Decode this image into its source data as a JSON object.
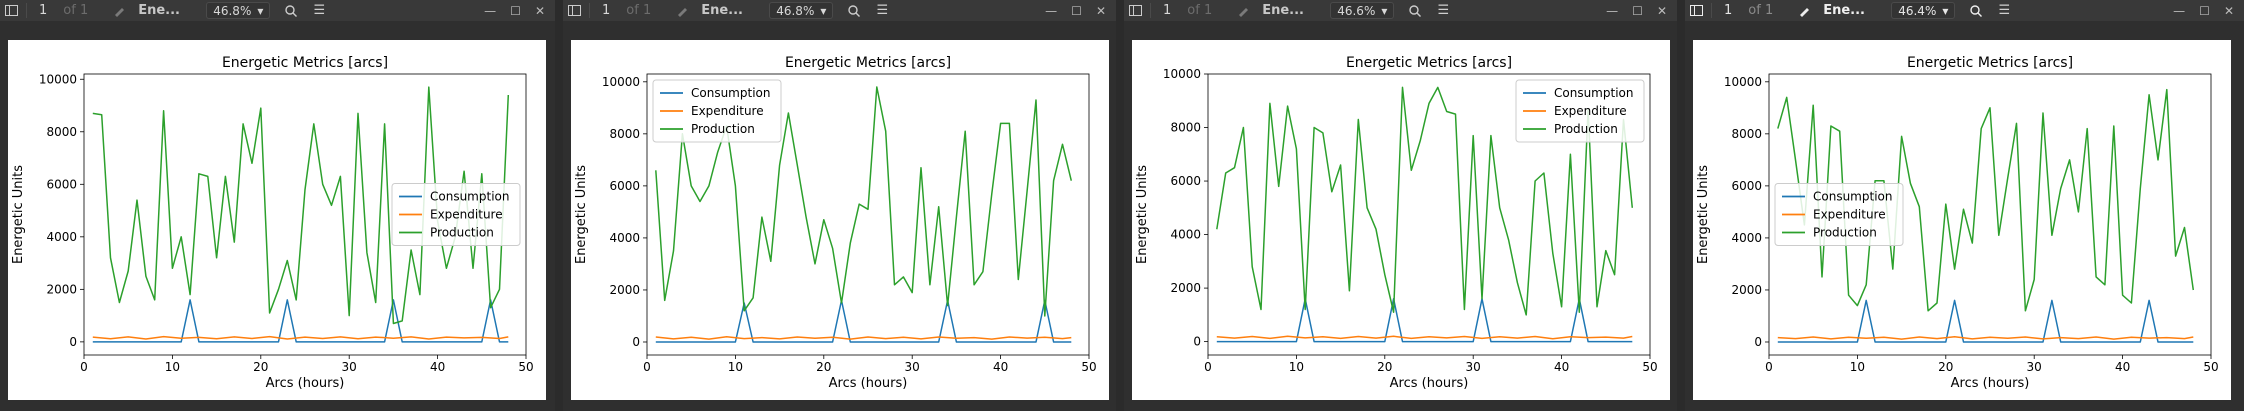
{
  "windows": [
    {
      "page": "1",
      "of": "of 1",
      "title": "Ene...",
      "zoom": "46.8%",
      "chart_data": {
        "type": "line",
        "title": "Energetic Metrics [arcs]",
        "xlabel": "Arcs (hours)",
        "ylabel": "Energetic Units",
        "xlim": [
          0,
          50
        ],
        "ylim": [
          -500,
          10200
        ],
        "xticks": [
          "0",
          "10",
          "20",
          "30",
          "40",
          "50"
        ],
        "yticks": [
          "0",
          "2000",
          "4000",
          "6000",
          "8000",
          "10000"
        ],
        "legend_position": "center-right",
        "series": [
          {
            "name": "Consumption",
            "color": "#1f77b4",
            "x": [
              1,
              11,
              12,
              13,
              22,
              23,
              24,
              34,
              35,
              36,
              45,
              46,
              47,
              48
            ],
            "y": [
              0,
              0,
              1600,
              0,
              0,
              1600,
              0,
              0,
              1600,
              0,
              0,
              1600,
              0,
              0
            ]
          },
          {
            "name": "Expenditure",
            "color": "#ff7f0e",
            "x": [
              1,
              3,
              5,
              7,
              9,
              11,
              13,
              15,
              17,
              19,
              21,
              23,
              25,
              27,
              29,
              31,
              33,
              35,
              37,
              39,
              41,
              43,
              45,
              47,
              48
            ],
            "y": [
              180,
              120,
              190,
              110,
              200,
              140,
              170,
              120,
              190,
              130,
              200,
              110,
              180,
              130,
              190,
              120,
              180,
              140,
              190,
              110,
              180,
              150,
              170,
              130,
              190
            ]
          },
          {
            "name": "Production",
            "color": "#2ca02c",
            "x": [
              1,
              2,
              3,
              4,
              5,
              6,
              7,
              8,
              9,
              10,
              11,
              12,
              13,
              14,
              15,
              16,
              17,
              18,
              19,
              20,
              21,
              22,
              23,
              24,
              25,
              26,
              27,
              28,
              29,
              30,
              31,
              32,
              33,
              34,
              35,
              36,
              37,
              38,
              39,
              40,
              41,
              42,
              43,
              44,
              45,
              46,
              47,
              48
            ],
            "y": [
              8700,
              8650,
              3200,
              1500,
              2700,
              5400,
              2500,
              1600,
              8800,
              2800,
              4000,
              1800,
              6400,
              6300,
              3200,
              6300,
              3800,
              8300,
              6800,
              8900,
              1100,
              2000,
              3100,
              1600,
              5800,
              8300,
              6000,
              5200,
              6300,
              1000,
              8700,
              3400,
              1500,
              8300,
              700,
              800,
              3500,
              1800,
              9700,
              4600,
              2800,
              4000,
              6500,
              2800,
              6400,
              1300,
              2000,
              9400
            ]
          }
        ]
      }
    },
    {
      "page": "1",
      "of": "of 1",
      "title": "Ene...",
      "zoom": "46.8%",
      "chart_data": {
        "type": "line",
        "title": "Energetic Metrics [arcs]",
        "xlabel": "Arcs (hours)",
        "ylabel": "Energetic Units",
        "xlim": [
          0,
          50
        ],
        "ylim": [
          -500,
          10300
        ],
        "xticks": [
          "0",
          "10",
          "20",
          "30",
          "40",
          "50"
        ],
        "yticks": [
          "0",
          "2000",
          "4000",
          "6000",
          "8000",
          "10000"
        ],
        "legend_position": "upper-left",
        "series": [
          {
            "name": "Consumption",
            "color": "#1f77b4",
            "x": [
              1,
              10,
              11,
              12,
              21,
              22,
              23,
              33,
              34,
              35,
              44,
              45,
              46,
              48
            ],
            "y": [
              0,
              0,
              1500,
              0,
              0,
              1600,
              0,
              0,
              1600,
              0,
              0,
              1600,
              0,
              0
            ]
          },
          {
            "name": "Expenditure",
            "color": "#ff7f0e",
            "x": [
              1,
              3,
              5,
              7,
              9,
              11,
              13,
              15,
              17,
              19,
              21,
              23,
              25,
              27,
              29,
              31,
              33,
              35,
              37,
              39,
              41,
              43,
              45,
              47,
              48
            ],
            "y": [
              190,
              120,
              180,
              110,
              200,
              130,
              170,
              120,
              190,
              140,
              180,
              110,
              190,
              130,
              180,
              120,
              190,
              140,
              170,
              110,
              190,
              150,
              180,
              130,
              170
            ]
          },
          {
            "name": "Production",
            "color": "#2ca02c",
            "x": [
              1,
              2,
              3,
              4,
              5,
              6,
              7,
              8,
              9,
              10,
              11,
              12,
              13,
              14,
              15,
              16,
              17,
              18,
              19,
              20,
              21,
              22,
              23,
              24,
              25,
              26,
              27,
              28,
              29,
              30,
              31,
              32,
              33,
              34,
              35,
              36,
              37,
              38,
              39,
              40,
              41,
              42,
              43,
              44,
              45,
              46,
              47,
              48
            ],
            "y": [
              6600,
              1600,
              3500,
              8000,
              6000,
              5400,
              6000,
              7300,
              8300,
              6000,
              1200,
              1700,
              4800,
              3100,
              6800,
              8800,
              6800,
              4800,
              3000,
              4700,
              3600,
              1500,
              3800,
              5300,
              5100,
              9800,
              8100,
              2200,
              2500,
              1900,
              6700,
              2200,
              5200,
              1400,
              4800,
              8100,
              2200,
              2700,
              5700,
              8400,
              8400,
              2400,
              5800,
              9300,
              1000,
              6200,
              7600,
              6200
            ]
          }
        ]
      }
    },
    {
      "page": "1",
      "of": "of 1",
      "title": "Ene...",
      "zoom": "46.6%",
      "chart_data": {
        "type": "line",
        "title": "Energetic Metrics [arcs]",
        "xlabel": "Arcs (hours)",
        "ylabel": "Energetic Units",
        "xlim": [
          0,
          50
        ],
        "ylim": [
          -500,
          10000
        ],
        "xticks": [
          "0",
          "10",
          "20",
          "30",
          "40",
          "50"
        ],
        "yticks": [
          "0",
          "2000",
          "4000",
          "6000",
          "8000",
          "10000"
        ],
        "legend_position": "upper-right",
        "series": [
          {
            "name": "Consumption",
            "color": "#1f77b4",
            "x": [
              1,
              10,
              11,
              12,
              20,
              21,
              22,
              30,
              31,
              32,
              41,
              42,
              43,
              48
            ],
            "y": [
              0,
              0,
              1600,
              0,
              0,
              1600,
              0,
              0,
              1600,
              0,
              0,
              1600,
              0,
              0
            ]
          },
          {
            "name": "Expenditure",
            "color": "#ff7f0e",
            "x": [
              1,
              3,
              5,
              7,
              9,
              11,
              13,
              15,
              17,
              19,
              21,
              23,
              25,
              27,
              29,
              31,
              33,
              35,
              37,
              39,
              41,
              43,
              45,
              47,
              48
            ],
            "y": [
              180,
              130,
              190,
              120,
              200,
              140,
              180,
              120,
              190,
              130,
              200,
              120,
              180,
              140,
              190,
              120,
              180,
              130,
              190,
              110,
              180,
              150,
              170,
              130,
              190
            ]
          },
          {
            "name": "Production",
            "color": "#2ca02c",
            "x": [
              1,
              2,
              3,
              4,
              5,
              6,
              7,
              8,
              9,
              10,
              11,
              12,
              13,
              14,
              15,
              16,
              17,
              18,
              19,
              20,
              21,
              22,
              23,
              24,
              25,
              26,
              27,
              28,
              29,
              30,
              31,
              32,
              33,
              34,
              35,
              36,
              37,
              38,
              39,
              40,
              41,
              42,
              43,
              44,
              45,
              46,
              47,
              48
            ],
            "y": [
              4200,
              6300,
              6500,
              8000,
              2800,
              1200,
              8900,
              5800,
              8800,
              7200,
              1200,
              8000,
              7800,
              5600,
              6600,
              1900,
              8300,
              5000,
              4200,
              2500,
              1100,
              9500,
              6400,
              7500,
              8900,
              9500,
              8600,
              8500,
              1200,
              7700,
              1600,
              7700,
              5000,
              3800,
              2200,
              1000,
              6000,
              6300,
              3300,
              1300,
              7000,
              1100,
              8700,
              1300,
              3400,
              2500,
              8300,
              5000
            ]
          }
        ]
      }
    },
    {
      "page": "1",
      "of": "of 1",
      "title": "Ene...",
      "zoom": "46.4%",
      "chart_data": {
        "type": "line",
        "title": "Energetic Metrics [arcs]",
        "xlabel": "Arcs (hours)",
        "ylabel": "Energetic Units",
        "xlim": [
          0,
          50
        ],
        "ylim": [
          -500,
          10300
        ],
        "xticks": [
          "0",
          "10",
          "20",
          "30",
          "40",
          "50"
        ],
        "yticks": [
          "0",
          "2000",
          "4000",
          "6000",
          "8000",
          "10000"
        ],
        "legend_position": "center-left",
        "series": [
          {
            "name": "Consumption",
            "color": "#1f77b4",
            "x": [
              1,
              10,
              11,
              12,
              20,
              21,
              22,
              31,
              32,
              33,
              42,
              43,
              44,
              48
            ],
            "y": [
              0,
              0,
              1600,
              0,
              0,
              1600,
              0,
              0,
              1600,
              0,
              0,
              1600,
              0,
              0
            ]
          },
          {
            "name": "Expenditure",
            "color": "#ff7f0e",
            "x": [
              1,
              3,
              5,
              7,
              9,
              11,
              13,
              15,
              17,
              19,
              21,
              23,
              25,
              27,
              29,
              31,
              33,
              35,
              37,
              39,
              41,
              43,
              45,
              47,
              48
            ],
            "y": [
              170,
              130,
              190,
              120,
              180,
              140,
              180,
              110,
              190,
              130,
              200,
              120,
              180,
              140,
              190,
              120,
              170,
              130,
              190,
              110,
              180,
              150,
              170,
              130,
              190
            ]
          },
          {
            "name": "Production",
            "color": "#2ca02c",
            "x": [
              1,
              2,
              3,
              4,
              5,
              6,
              7,
              8,
              9,
              10,
              11,
              12,
              13,
              14,
              15,
              16,
              17,
              18,
              19,
              20,
              21,
              22,
              23,
              24,
              25,
              26,
              27,
              28,
              29,
              30,
              31,
              32,
              33,
              34,
              35,
              36,
              37,
              38,
              39,
              40,
              41,
              42,
              43,
              44,
              45,
              46,
              47,
              48
            ],
            "y": [
              8200,
              9400,
              7000,
              4500,
              9100,
              2500,
              8300,
              8100,
              1800,
              1400,
              2200,
              6200,
              6200,
              2800,
              7900,
              6100,
              5200,
              1200,
              1500,
              5300,
              2800,
              5100,
              3800,
              8200,
              9000,
              4100,
              6300,
              8400,
              1200,
              2400,
              8800,
              4100,
              5900,
              7000,
              5000,
              8200,
              2500,
              2200,
              8300,
              1800,
              1500,
              5900,
              9500,
              7000,
              9700,
              3300,
              4400,
              2000
            ]
          }
        ]
      }
    }
  ]
}
